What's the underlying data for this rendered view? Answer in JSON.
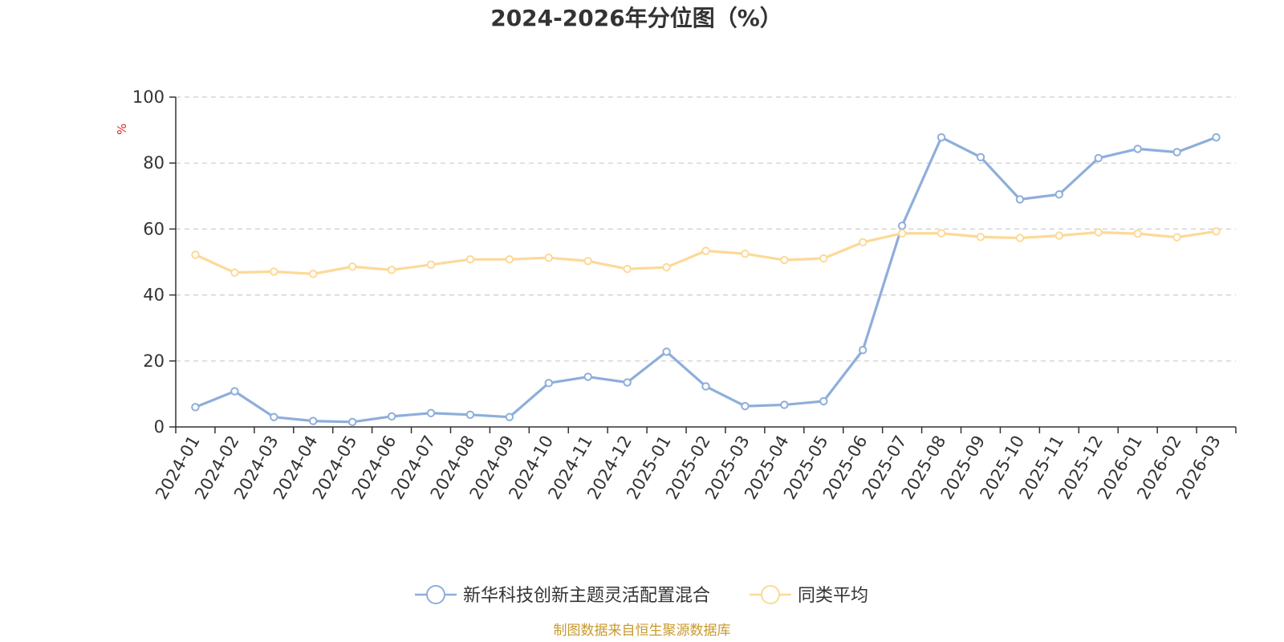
{
  "chart_data": {
    "type": "line",
    "title": "2024-2026年分位图（%）",
    "ylabel": "%",
    "ylim": [
      0,
      100
    ],
    "yticks": [
      0,
      20,
      40,
      60,
      80,
      100
    ],
    "grid": true,
    "legend_position": "bottom",
    "categories": [
      "2024-01",
      "2024-02",
      "2024-03",
      "2024-04",
      "2024-05",
      "2024-06",
      "2024-07",
      "2024-08",
      "2024-09",
      "2024-10",
      "2024-11",
      "2024-12",
      "2025-01",
      "2025-02",
      "2025-03",
      "2025-04",
      "2025-05",
      "2025-06",
      "2025-07",
      "2025-08",
      "2025-09",
      "2025-10",
      "2025-11",
      "2025-12",
      "2026-01",
      "2026-02",
      "2026-03"
    ],
    "series": [
      {
        "name": "新华科技创新主题灵活配置混合",
        "color": "#8eaedb",
        "values": [
          6.0,
          10.8,
          3.0,
          1.8,
          1.5,
          3.2,
          4.2,
          3.7,
          3.0,
          13.3,
          15.2,
          13.5,
          22.8,
          12.3,
          6.3,
          6.7,
          7.8,
          23.3,
          61.0,
          87.8,
          81.8,
          69.0,
          70.5,
          81.5,
          84.3,
          83.3,
          87.8
        ]
      },
      {
        "name": "同类平均",
        "color": "#fdd998",
        "values": [
          52.2,
          46.8,
          47.1,
          46.4,
          48.6,
          47.6,
          49.2,
          50.8,
          50.8,
          51.3,
          50.3,
          47.9,
          48.4,
          53.4,
          52.5,
          50.6,
          51.1,
          56.0,
          58.7,
          58.7,
          57.6,
          57.3,
          58.0,
          59.0,
          58.6,
          57.5,
          59.3
        ]
      }
    ],
    "source": "制图数据来自恒生聚源数据库"
  }
}
